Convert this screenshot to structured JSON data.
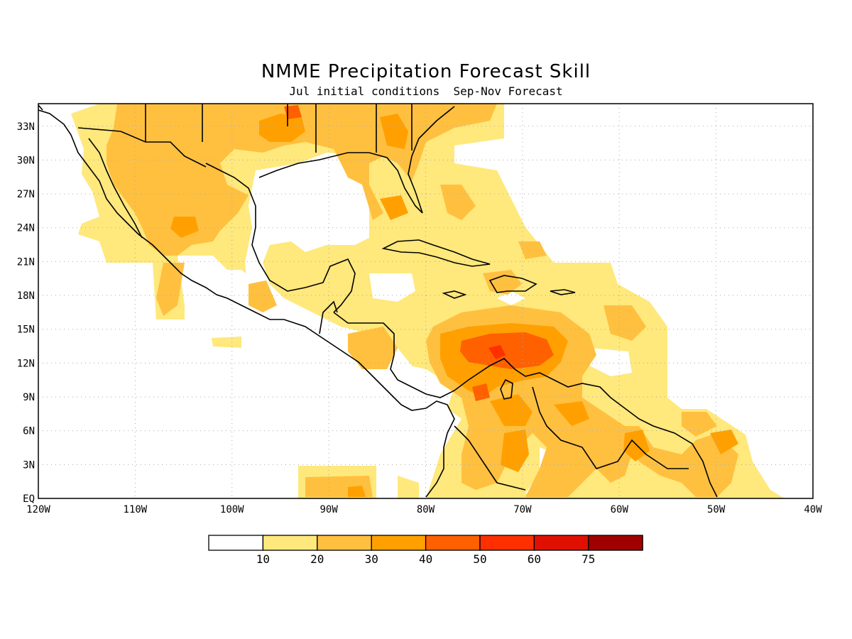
{
  "title": "NMME Precipitation Forecast Skill",
  "subtitle": "Jul initial conditions  Sep-Nov Forecast",
  "map": {
    "lon_range": [
      -120,
      -40
    ],
    "lat_range": [
      0,
      35
    ],
    "lon_ticks": [
      "120W",
      "110W",
      "100W",
      "90W",
      "80W",
      "70W",
      "60W",
      "50W",
      "40W"
    ],
    "lat_ticks": [
      "EQ",
      "3N",
      "6N",
      "9N",
      "12N",
      "15N",
      "18N",
      "21N",
      "24N",
      "27N",
      "30N",
      "33N"
    ],
    "gridlines": true,
    "fill_colors": [
      "#ffffff",
      "#ffe87c",
      "#ffc040",
      "#ffa000",
      "#ff6000",
      "#ff3000",
      "#e01000",
      "#a00000"
    ]
  },
  "colorbar": {
    "labels": [
      "10",
      "20",
      "30",
      "40",
      "50",
      "60",
      "75"
    ],
    "colors": [
      "#ffffff",
      "#ffe87c",
      "#ffc040",
      "#ffa000",
      "#ff6000",
      "#ff3000",
      "#e01000",
      "#a00000"
    ]
  }
}
